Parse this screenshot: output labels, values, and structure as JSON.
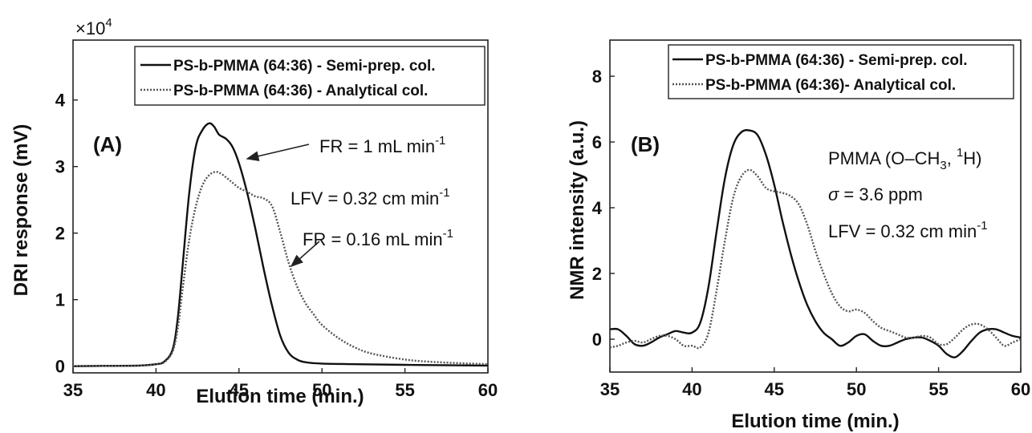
{
  "chart_data": [
    {
      "panel_label": "(A)",
      "type": "line",
      "xlabel": "Elution time (min.)",
      "ylabel": "DRI response (mV)",
      "y_multiplier": {
        "base": "×10",
        "exponent": "4"
      },
      "xlim": [
        35,
        60
      ],
      "ylim": [
        -0.1,
        4.9
      ],
      "x_ticks": [
        35,
        40,
        45,
        50,
        55,
        60
      ],
      "y_ticks": [
        0,
        1,
        2,
        3,
        4
      ],
      "grid": false,
      "legend_position": "top-right",
      "series": [
        {
          "name": "PS-b-PMMA (64:36) - Semi-prep. col.",
          "style": "solid",
          "x": [
            35,
            37,
            39,
            40,
            40.5,
            41,
            41.3,
            41.6,
            42,
            42.4,
            42.8,
            43.2,
            43.5,
            43.8,
            44.2,
            44.6,
            45,
            45.5,
            46,
            46.5,
            47,
            47.5,
            48,
            48.5,
            49,
            50,
            52,
            55,
            60
          ],
          "y": [
            0,
            0.005,
            0.01,
            0.03,
            0.07,
            0.25,
            0.7,
            1.5,
            2.6,
            3.3,
            3.55,
            3.65,
            3.6,
            3.48,
            3.42,
            3.3,
            3.05,
            2.6,
            2.05,
            1.45,
            0.9,
            0.45,
            0.2,
            0.1,
            0.06,
            0.04,
            0.03,
            0.02,
            0.01
          ]
        },
        {
          "name": "PS-b-PMMA (64:36) - Analytical col.",
          "style": "dotted",
          "x": [
            35,
            37,
            39,
            40,
            40.5,
            41,
            41.3,
            41.6,
            42,
            42.4,
            42.8,
            43.2,
            43.6,
            44,
            44.5,
            45,
            45.5,
            46,
            46.5,
            47,
            47.5,
            48,
            48.5,
            49,
            49.5,
            50,
            51,
            52,
            53,
            55,
            57,
            60
          ],
          "y": [
            0,
            0.005,
            0.01,
            0.03,
            0.06,
            0.22,
            0.55,
            1.15,
            1.9,
            2.4,
            2.72,
            2.87,
            2.92,
            2.88,
            2.78,
            2.68,
            2.62,
            2.55,
            2.52,
            2.4,
            2.0,
            1.55,
            1.2,
            0.95,
            0.78,
            0.62,
            0.42,
            0.28,
            0.19,
            0.1,
            0.06,
            0.03
          ]
        }
      ],
      "annotations": [
        {
          "main": "FR = 1 mL min",
          "sup": "-1"
        },
        {
          "main": "LFV = 0.32 cm min",
          "sup": "-1"
        },
        {
          "main": "FR = 0.16 mL min",
          "sup": "-1"
        }
      ]
    },
    {
      "panel_label": "(B)",
      "type": "line",
      "xlabel": "Elution time (min.)",
      "ylabel": "NMR intensity (a.u.)",
      "xlim": [
        35,
        60
      ],
      "ylim": [
        -1,
        9.1
      ],
      "x_ticks": [
        35,
        40,
        45,
        50,
        55,
        60
      ],
      "y_ticks": [
        0,
        2,
        4,
        6,
        8
      ],
      "grid": false,
      "legend_position": "top-right",
      "series": [
        {
          "name": "PS-b-PMMA (64:36) - Semi-prep. col.",
          "style": "solid",
          "x": [
            35,
            35.5,
            36,
            36.5,
            37,
            37.5,
            38,
            38.5,
            39,
            39.5,
            40,
            40.5,
            41,
            41.5,
            42,
            42.5,
            43,
            43.5,
            44,
            44.5,
            45,
            45.5,
            46,
            46.5,
            47,
            47.5,
            48,
            48.5,
            49,
            49.5,
            50,
            50.5,
            51,
            51.5,
            52,
            52.5,
            53,
            53.5,
            54,
            54.5,
            55,
            55.5,
            56,
            56.5,
            57,
            57.5,
            58,
            58.5,
            59,
            59.5,
            60
          ],
          "y": [
            0.3,
            0.3,
            0.1,
            -0.15,
            -0.2,
            -0.1,
            0.05,
            0.15,
            0.25,
            0.2,
            0.2,
            0.5,
            1.6,
            3.3,
            4.9,
            5.9,
            6.3,
            6.35,
            6.2,
            5.6,
            4.7,
            3.6,
            2.6,
            1.75,
            1.05,
            0.55,
            0.2,
            0.0,
            -0.2,
            -0.1,
            0.1,
            0.15,
            -0.05,
            -0.2,
            -0.2,
            -0.1,
            0.0,
            0.05,
            0.05,
            -0.05,
            -0.2,
            -0.45,
            -0.55,
            -0.35,
            -0.05,
            0.2,
            0.3,
            0.3,
            0.2,
            0.1,
            0.05
          ]
        },
        {
          "name": "PS-b-PMMA (64:36)- Analytical col.",
          "style": "dotted",
          "x": [
            35,
            35.5,
            36,
            36.5,
            37,
            37.5,
            38,
            38.5,
            39,
            39.5,
            40,
            40.5,
            41,
            41.5,
            42,
            42.5,
            43,
            43.5,
            44,
            44.5,
            45,
            45.5,
            46,
            46.5,
            47,
            47.5,
            48,
            48.5,
            49,
            49.5,
            50,
            50.5,
            51,
            51.5,
            52,
            52.5,
            53,
            53.5,
            54,
            54.5,
            55,
            55.5,
            56,
            56.5,
            57,
            57.5,
            58,
            58.5,
            59,
            59.5,
            60
          ],
          "y": [
            -0.25,
            -0.2,
            -0.1,
            -0.05,
            -0.1,
            0.0,
            0.1,
            0.1,
            0.0,
            -0.2,
            -0.2,
            -0.25,
            0.2,
            1.5,
            3.0,
            4.3,
            4.95,
            5.15,
            4.95,
            4.6,
            4.5,
            4.45,
            4.35,
            4.1,
            3.5,
            2.7,
            2.0,
            1.4,
            1.0,
            0.85,
            0.9,
            0.8,
            0.55,
            0.35,
            0.25,
            0.15,
            0.05,
            0.05,
            0.1,
            0.05,
            -0.15,
            -0.15,
            0.05,
            0.3,
            0.45,
            0.45,
            0.3,
            0.05,
            -0.2,
            -0.1,
            0.0
          ]
        }
      ],
      "annotations": [
        {
          "main": "PMMA (O–CH",
          "sub": "3",
          "mid": ", ",
          "sup": "1",
          "tail": "H)"
        },
        {
          "sigma": "σ",
          "main": " = 3.6 ppm"
        },
        {
          "main": "LFV = 0.32 cm min",
          "sup": "-1"
        }
      ]
    }
  ]
}
